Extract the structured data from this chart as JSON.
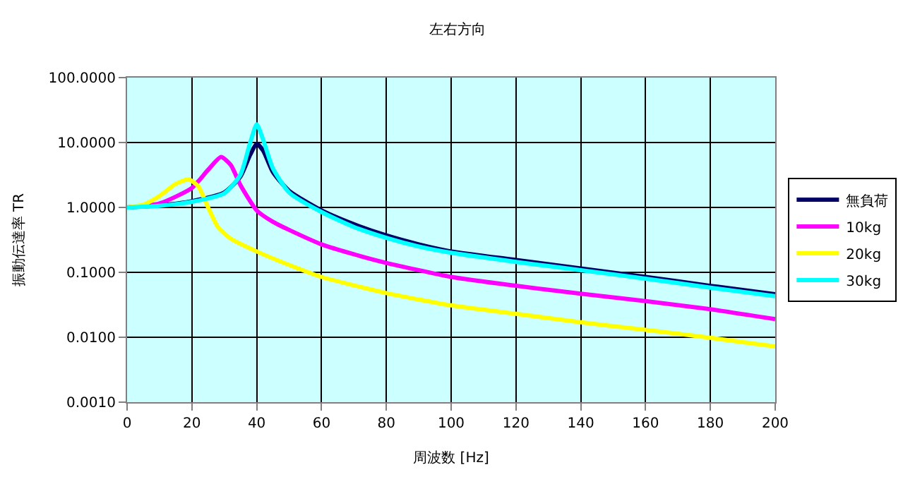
{
  "chart_data": {
    "type": "line",
    "title": "左右方向",
    "xlabel": "周波数 [Hz]",
    "ylabel": "振動伝達率 TR",
    "log": "y",
    "grid": true,
    "legend": "right",
    "marker": "none",
    "line_style": "solid",
    "xlim": [
      0,
      200
    ],
    "xticks": [
      0,
      20,
      40,
      60,
      80,
      100,
      120,
      140,
      160,
      180,
      200
    ],
    "ylim": [
      0.001,
      100
    ],
    "yticks": [
      {
        "value": 100,
        "label": "100.0000"
      },
      {
        "value": 10,
        "label": "10.0000"
      },
      {
        "value": 1,
        "label": "1.0000"
      },
      {
        "value": 0.1,
        "label": "0.1000"
      },
      {
        "value": 0.01,
        "label": "0.0100"
      },
      {
        "value": 0.001,
        "label": "0.0010"
      }
    ],
    "series": [
      {
        "name": "無負荷",
        "color": "#000066",
        "x": [
          0,
          10,
          20,
          30,
          35,
          38,
          40,
          42,
          45,
          50,
          60,
          70,
          80,
          90,
          100,
          120,
          140,
          160,
          180,
          200
        ],
        "values": [
          1,
          1.07,
          1.25,
          1.7,
          3,
          6.5,
          9.5,
          7.5,
          3.5,
          1.8,
          0.9,
          0.55,
          0.37,
          0.27,
          0.21,
          0.155,
          0.115,
          0.085,
          0.062,
          0.046
        ]
      },
      {
        "name": "10kg",
        "color": "#ff00ff",
        "x": [
          0,
          10,
          20,
          25,
          29,
          32,
          35,
          40,
          45,
          50,
          60,
          70,
          80,
          100,
          120,
          140,
          160,
          180,
          200
        ],
        "values": [
          1,
          1.15,
          2.0,
          3.8,
          6.0,
          4.5,
          2.2,
          0.9,
          0.6,
          0.45,
          0.27,
          0.19,
          0.14,
          0.085,
          0.062,
          0.047,
          0.036,
          0.027,
          0.019
        ]
      },
      {
        "name": "20kg",
        "color": "#ffff00",
        "x": [
          0,
          5,
          10,
          15,
          19,
          22,
          25,
          28,
          32,
          40,
          50,
          60,
          80,
          100,
          120,
          140,
          160,
          180,
          200
        ],
        "values": [
          1,
          1.1,
          1.5,
          2.3,
          2.7,
          2.1,
          1.0,
          0.5,
          0.33,
          0.21,
          0.13,
          0.085,
          0.048,
          0.031,
          0.023,
          0.017,
          0.013,
          0.0098,
          0.0072
        ]
      },
      {
        "name": "30kg",
        "color": "#00ffff",
        "x": [
          0,
          10,
          20,
          30,
          35,
          38,
          40,
          42,
          45,
          50,
          60,
          70,
          80,
          90,
          100,
          120,
          140,
          160,
          180,
          200
        ],
        "values": [
          1,
          1.06,
          1.22,
          1.65,
          3.2,
          10,
          19,
          11,
          4,
          1.7,
          0.85,
          0.5,
          0.34,
          0.25,
          0.2,
          0.145,
          0.108,
          0.08,
          0.058,
          0.043
        ]
      }
    ]
  }
}
